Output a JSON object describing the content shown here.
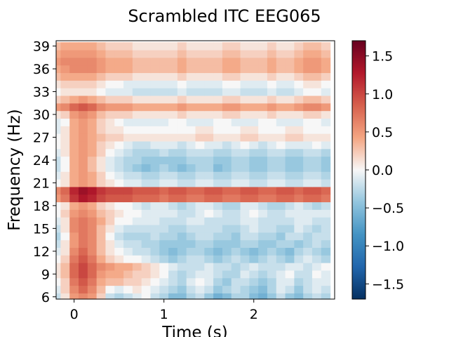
{
  "chart_data": {
    "type": "heatmap",
    "title": "Scrambled ITC EEG065",
    "xlabel": "Time (s)",
    "ylabel": "Frequency (Hz)",
    "xlim": [
      -0.2,
      2.9
    ],
    "ylim": [
      5.7,
      39.7
    ],
    "x_ticks": [
      0,
      1,
      2
    ],
    "x_tick_labels": [
      "0",
      "1",
      "2"
    ],
    "y_ticks": [
      6,
      9,
      12,
      15,
      18,
      21,
      24,
      27,
      30,
      33,
      36,
      39
    ],
    "y_tick_labels": [
      "6",
      "9",
      "12",
      "15",
      "18",
      "21",
      "24",
      "27",
      "30",
      "33",
      "36",
      "39"
    ],
    "colorbar": {
      "vmin": -1.7,
      "vmax": 1.7,
      "ticks": [
        -1.5,
        -1.0,
        -0.5,
        0.0,
        0.5,
        1.0,
        1.5
      ],
      "tick_labels": [
        "−1.5",
        "−1.0",
        "−0.5",
        "0.0",
        "0.5",
        "1.0",
        "1.5"
      ],
      "colormap": "RdBu_r"
    },
    "frequencies": [
      6,
      7,
      8,
      9,
      10,
      11,
      12,
      13,
      14,
      15,
      16,
      17,
      18,
      19,
      20,
      21,
      22,
      23,
      24,
      25,
      26,
      27,
      28,
      29,
      30,
      31,
      32,
      33,
      34,
      35,
      36,
      37,
      38,
      39
    ],
    "times": [
      -0.2,
      -0.1,
      0.0,
      0.1,
      0.2,
      0.3,
      0.4,
      0.5,
      0.6,
      0.7,
      0.8,
      0.9,
      1.0,
      1.1,
      1.2,
      1.3,
      1.4,
      1.5,
      1.6,
      1.7,
      1.8,
      1.9,
      2.0,
      2.1,
      2.2,
      2.3,
      2.4,
      2.5,
      2.6,
      2.7,
      2.8
    ],
    "values": [
      [
        -0.2,
        0.1,
        0.5,
        0.6,
        0.5,
        0.2,
        -0.2,
        -0.3,
        -0.2,
        -0.1,
        0.0,
        -0.2,
        -0.3,
        -0.5,
        -0.5,
        -0.3,
        -0.2,
        -0.4,
        -0.6,
        -0.5,
        -0.3,
        -0.3,
        -0.5,
        -0.6,
        -0.4,
        -0.2,
        -0.4,
        -0.5,
        -0.3,
        -0.2,
        -0.3
      ],
      [
        -0.1,
        0.2,
        0.6,
        0.8,
        0.6,
        0.3,
        0.0,
        -0.1,
        0.0,
        0.1,
        0.0,
        -0.1,
        -0.2,
        -0.3,
        -0.4,
        -0.2,
        -0.1,
        -0.2,
        -0.4,
        -0.3,
        -0.2,
        -0.3,
        -0.4,
        -0.5,
        -0.3,
        -0.1,
        -0.2,
        -0.4,
        -0.2,
        -0.1,
        -0.2
      ],
      [
        0.0,
        0.2,
        0.7,
        0.9,
        0.7,
        0.4,
        0.3,
        0.3,
        0.2,
        0.2,
        0.1,
        0.0,
        -0.1,
        -0.2,
        -0.3,
        -0.1,
        0.0,
        -0.1,
        -0.3,
        -0.4,
        -0.2,
        -0.2,
        -0.3,
        -0.4,
        -0.3,
        -0.1,
        -0.1,
        -0.3,
        -0.2,
        -0.1,
        -0.1
      ],
      [
        0.1,
        0.3,
        0.8,
        1.0,
        0.8,
        0.5,
        0.4,
        0.4,
        0.3,
        0.2,
        0.2,
        0.1,
        0.0,
        -0.2,
        -0.3,
        -0.2,
        -0.1,
        -0.1,
        -0.2,
        -0.3,
        -0.3,
        -0.1,
        -0.2,
        -0.3,
        -0.2,
        -0.1,
        0.0,
        -0.2,
        -0.2,
        0.0,
        -0.1
      ],
      [
        0.1,
        0.3,
        0.8,
        1.0,
        0.8,
        0.6,
        0.5,
        0.4,
        0.4,
        0.3,
        0.2,
        0.1,
        0.0,
        -0.1,
        -0.2,
        -0.2,
        -0.2,
        -0.1,
        -0.2,
        -0.2,
        -0.3,
        -0.2,
        -0.1,
        -0.2,
        -0.2,
        -0.2,
        -0.1,
        -0.1,
        -0.2,
        -0.1,
        0.0
      ],
      [
        0.0,
        0.2,
        0.7,
        0.9,
        0.7,
        0.4,
        0.2,
        0.1,
        0.0,
        0.0,
        -0.1,
        -0.2,
        -0.3,
        -0.4,
        -0.3,
        -0.2,
        -0.2,
        -0.3,
        -0.4,
        -0.3,
        -0.2,
        -0.3,
        -0.4,
        -0.3,
        -0.2,
        -0.3,
        -0.4,
        -0.2,
        -0.1,
        -0.2,
        -0.3
      ],
      [
        -0.1,
        0.1,
        0.6,
        0.8,
        0.6,
        0.3,
        0.1,
        0.0,
        -0.1,
        -0.2,
        -0.2,
        -0.3,
        -0.4,
        -0.5,
        -0.4,
        -0.3,
        -0.3,
        -0.4,
        -0.5,
        -0.4,
        -0.3,
        -0.4,
        -0.5,
        -0.4,
        -0.3,
        -0.4,
        -0.5,
        -0.3,
        -0.2,
        -0.3,
        -0.4
      ],
      [
        -0.2,
        0.1,
        0.5,
        0.7,
        0.6,
        0.3,
        0.1,
        -0.1,
        -0.2,
        -0.2,
        -0.3,
        -0.3,
        -0.4,
        -0.4,
        -0.4,
        -0.4,
        -0.3,
        -0.3,
        -0.4,
        -0.4,
        -0.4,
        -0.3,
        -0.3,
        -0.4,
        -0.4,
        -0.3,
        -0.3,
        -0.4,
        -0.3,
        -0.2,
        -0.3
      ],
      [
        -0.3,
        0.0,
        0.5,
        0.7,
        0.6,
        0.3,
        0.0,
        -0.2,
        -0.3,
        -0.3,
        -0.3,
        -0.2,
        -0.3,
        -0.3,
        -0.4,
        -0.3,
        -0.2,
        -0.2,
        -0.3,
        -0.3,
        -0.4,
        -0.2,
        -0.2,
        -0.3,
        -0.3,
        -0.4,
        -0.2,
        -0.2,
        -0.3,
        -0.2,
        -0.2
      ],
      [
        -0.2,
        0.1,
        0.6,
        0.7,
        0.6,
        0.3,
        0.1,
        -0.1,
        -0.2,
        -0.2,
        -0.2,
        -0.2,
        -0.2,
        -0.3,
        -0.3,
        -0.2,
        -0.2,
        -0.2,
        -0.2,
        -0.3,
        -0.3,
        -0.2,
        -0.1,
        -0.2,
        -0.2,
        -0.3,
        -0.3,
        -0.1,
        -0.2,
        -0.3,
        -0.2
      ],
      [
        -0.1,
        0.1,
        0.6,
        0.7,
        0.6,
        0.4,
        0.2,
        0.0,
        0.0,
        -0.1,
        -0.1,
        -0.1,
        -0.2,
        -0.2,
        -0.2,
        -0.1,
        -0.1,
        -0.2,
        -0.2,
        -0.2,
        -0.2,
        -0.1,
        -0.1,
        -0.2,
        -0.2,
        -0.2,
        -0.2,
        -0.1,
        -0.1,
        -0.2,
        -0.2
      ],
      [
        0.0,
        0.2,
        0.5,
        0.6,
        0.5,
        0.3,
        0.2,
        0.1,
        0.0,
        0.0,
        -0.1,
        -0.1,
        -0.1,
        -0.1,
        -0.2,
        -0.2,
        -0.1,
        0.0,
        -0.1,
        -0.2,
        -0.2,
        -0.1,
        0.0,
        -0.1,
        -0.2,
        -0.2,
        -0.1,
        -0.1,
        -0.1,
        -0.1,
        -0.1
      ],
      [
        0.0,
        0.1,
        0.4,
        0.5,
        0.4,
        0.2,
        0.1,
        0.0,
        0.0,
        -0.1,
        -0.2,
        -0.1,
        -0.1,
        -0.2,
        -0.3,
        -0.2,
        -0.1,
        -0.1,
        -0.2,
        -0.3,
        -0.3,
        -0.1,
        -0.1,
        -0.2,
        -0.3,
        -0.3,
        -0.2,
        -0.1,
        -0.2,
        -0.3,
        -0.2
      ],
      [
        0.5,
        0.7,
        1.1,
        1.3,
        1.2,
        1.0,
        0.9,
        0.9,
        0.9,
        0.8,
        0.8,
        0.8,
        0.7,
        0.8,
        0.8,
        0.7,
        0.7,
        0.8,
        0.8,
        0.7,
        0.7,
        0.8,
        0.8,
        0.7,
        0.7,
        0.8,
        0.8,
        0.7,
        0.8,
        0.8,
        0.7
      ],
      [
        0.6,
        0.8,
        1.2,
        1.4,
        1.3,
        1.1,
        1.0,
        1.0,
        1.0,
        0.9,
        0.9,
        0.9,
        0.8,
        0.9,
        0.9,
        0.8,
        0.8,
        0.9,
        0.9,
        0.8,
        0.8,
        0.9,
        0.9,
        0.8,
        0.8,
        0.9,
        0.9,
        0.8,
        0.9,
        0.9,
        0.8
      ],
      [
        0.0,
        0.1,
        0.4,
        0.5,
        0.4,
        0.2,
        0.1,
        0.0,
        -0.1,
        -0.1,
        -0.2,
        -0.2,
        -0.1,
        -0.1,
        -0.2,
        -0.2,
        -0.1,
        -0.1,
        -0.2,
        -0.2,
        -0.1,
        -0.1,
        -0.2,
        -0.2,
        -0.1,
        -0.1,
        -0.2,
        -0.2,
        -0.1,
        -0.1,
        -0.2
      ],
      [
        -0.1,
        0.1,
        0.4,
        0.5,
        0.4,
        0.2,
        0.0,
        -0.1,
        -0.2,
        -0.2,
        -0.3,
        -0.3,
        -0.2,
        -0.2,
        -0.3,
        -0.3,
        -0.2,
        -0.2,
        -0.3,
        -0.3,
        -0.2,
        -0.2,
        -0.3,
        -0.3,
        -0.2,
        -0.2,
        -0.3,
        -0.3,
        -0.2,
        -0.2,
        -0.3
      ],
      [
        -0.2,
        0.0,
        0.4,
        0.5,
        0.3,
        0.1,
        -0.1,
        -0.2,
        -0.3,
        -0.4,
        -0.5,
        -0.4,
        -0.3,
        -0.4,
        -0.5,
        -0.4,
        -0.3,
        -0.3,
        -0.5,
        -0.4,
        -0.3,
        -0.3,
        -0.4,
        -0.4,
        -0.3,
        -0.3,
        -0.4,
        -0.4,
        -0.3,
        -0.3,
        -0.4
      ],
      [
        -0.2,
        0.0,
        0.4,
        0.5,
        0.3,
        0.1,
        -0.1,
        -0.2,
        -0.3,
        -0.3,
        -0.4,
        -0.4,
        -0.4,
        -0.4,
        -0.4,
        -0.3,
        -0.3,
        -0.3,
        -0.4,
        -0.4,
        -0.3,
        -0.3,
        -0.4,
        -0.4,
        -0.3,
        -0.3,
        -0.4,
        -0.4,
        -0.3,
        -0.3,
        -0.4
      ],
      [
        -0.1,
        0.1,
        0.4,
        0.5,
        0.4,
        0.2,
        0.0,
        -0.1,
        -0.2,
        -0.3,
        -0.3,
        -0.3,
        -0.2,
        -0.3,
        -0.3,
        -0.2,
        -0.2,
        -0.2,
        -0.3,
        -0.3,
        -0.2,
        -0.2,
        -0.3,
        -0.3,
        -0.2,
        -0.2,
        -0.3,
        -0.3,
        -0.2,
        -0.2,
        -0.3
      ],
      [
        0.0,
        0.1,
        0.4,
        0.5,
        0.4,
        0.2,
        0.1,
        0.0,
        -0.1,
        -0.2,
        -0.2,
        -0.1,
        -0.1,
        -0.1,
        -0.2,
        -0.1,
        0.0,
        -0.1,
        -0.1,
        -0.2,
        -0.1,
        0.0,
        -0.1,
        -0.2,
        -0.1,
        0.0,
        -0.1,
        -0.1,
        -0.1,
        0.0,
        -0.1
      ],
      [
        0.0,
        0.1,
        0.4,
        0.5,
        0.4,
        0.3,
        0.2,
        0.2,
        0.1,
        0.1,
        0.1,
        0.1,
        0.1,
        0.1,
        0.1,
        0.1,
        0.2,
        0.2,
        0.1,
        0.1,
        0.1,
        0.2,
        0.2,
        0.1,
        0.1,
        0.1,
        0.2,
        0.2,
        0.1,
        0.1,
        0.1
      ],
      [
        -0.1,
        0.1,
        0.4,
        0.5,
        0.4,
        0.2,
        0.1,
        0.1,
        0.0,
        0.0,
        0.0,
        0.0,
        0.0,
        0.0,
        0.0,
        0.0,
        0.1,
        0.1,
        0.0,
        0.0,
        0.0,
        0.1,
        0.1,
        0.0,
        0.0,
        0.0,
        0.1,
        0.1,
        0.0,
        0.0,
        0.0
      ],
      [
        -0.1,
        0.0,
        0.4,
        0.5,
        0.4,
        0.2,
        0.1,
        0.0,
        -0.1,
        -0.1,
        -0.1,
        -0.1,
        -0.1,
        0.0,
        0.0,
        -0.1,
        -0.1,
        -0.1,
        0.0,
        0.0,
        -0.1,
        -0.1,
        -0.1,
        0.0,
        0.0,
        -0.1,
        -0.1,
        -0.1,
        0.0,
        0.0,
        -0.1
      ],
      [
        0.1,
        0.2,
        0.5,
        0.6,
        0.5,
        0.3,
        0.2,
        0.2,
        0.2,
        0.1,
        0.1,
        0.1,
        0.1,
        0.1,
        0.2,
        0.1,
        0.1,
        0.1,
        0.1,
        0.2,
        0.2,
        0.1,
        0.1,
        0.1,
        0.2,
        0.1,
        0.1,
        0.1,
        0.2,
        0.2,
        0.1
      ],
      [
        0.5,
        0.6,
        0.8,
        0.9,
        0.8,
        0.6,
        0.5,
        0.5,
        0.5,
        0.4,
        0.4,
        0.4,
        0.4,
        0.4,
        0.5,
        0.4,
        0.4,
        0.4,
        0.4,
        0.5,
        0.5,
        0.4,
        0.4,
        0.4,
        0.5,
        0.4,
        0.4,
        0.5,
        0.6,
        0.6,
        0.5
      ],
      [
        0.2,
        0.3,
        0.4,
        0.5,
        0.4,
        0.3,
        0.2,
        0.2,
        0.2,
        0.1,
        0.1,
        0.1,
        0.1,
        0.1,
        0.2,
        0.1,
        0.1,
        0.1,
        0.1,
        0.2,
        0.2,
        0.1,
        0.1,
        0.1,
        0.2,
        0.1,
        0.1,
        0.2,
        0.3,
        0.3,
        0.2
      ],
      [
        0.0,
        0.1,
        0.1,
        0.1,
        0.1,
        0.0,
        -0.1,
        -0.1,
        -0.1,
        -0.2,
        -0.2,
        -0.2,
        -0.2,
        -0.2,
        -0.1,
        -0.2,
        -0.2,
        -0.2,
        -0.2,
        -0.1,
        -0.1,
        -0.2,
        -0.2,
        -0.2,
        -0.1,
        -0.2,
        -0.2,
        -0.1,
        0.0,
        0.0,
        -0.1
      ],
      [
        0.1,
        0.2,
        0.2,
        0.2,
        0.2,
        0.1,
        0.0,
        0.0,
        -0.1,
        -0.1,
        -0.1,
        -0.1,
        -0.1,
        -0.1,
        0.0,
        -0.1,
        -0.1,
        -0.1,
        -0.1,
        0.0,
        0.0,
        -0.1,
        -0.1,
        -0.1,
        0.0,
        -0.1,
        -0.1,
        0.0,
        0.1,
        0.1,
        0.0
      ],
      [
        0.3,
        0.4,
        0.4,
        0.4,
        0.4,
        0.3,
        0.2,
        0.2,
        0.2,
        0.1,
        0.1,
        0.1,
        0.1,
        0.1,
        0.2,
        0.1,
        0.1,
        0.1,
        0.1,
        0.2,
        0.2,
        0.1,
        0.1,
        0.1,
        0.2,
        0.1,
        0.1,
        0.2,
        0.3,
        0.3,
        0.2
      ],
      [
        0.4,
        0.5,
        0.6,
        0.6,
        0.6,
        0.5,
        0.4,
        0.4,
        0.4,
        0.3,
        0.3,
        0.3,
        0.3,
        0.3,
        0.4,
        0.3,
        0.3,
        0.3,
        0.3,
        0.4,
        0.4,
        0.3,
        0.3,
        0.3,
        0.4,
        0.3,
        0.3,
        0.4,
        0.5,
        0.5,
        0.4
      ],
      [
        0.5,
        0.6,
        0.6,
        0.6,
        0.6,
        0.5,
        0.4,
        0.4,
        0.4,
        0.3,
        0.3,
        0.3,
        0.3,
        0.3,
        0.4,
        0.3,
        0.3,
        0.3,
        0.3,
        0.4,
        0.4,
        0.3,
        0.3,
        0.3,
        0.4,
        0.3,
        0.3,
        0.4,
        0.5,
        0.5,
        0.4
      ],
      [
        0.4,
        0.5,
        0.5,
        0.5,
        0.5,
        0.4,
        0.3,
        0.3,
        0.3,
        0.2,
        0.2,
        0.2,
        0.2,
        0.2,
        0.3,
        0.2,
        0.2,
        0.2,
        0.2,
        0.3,
        0.3,
        0.2,
        0.2,
        0.2,
        0.3,
        0.2,
        0.2,
        0.3,
        0.4,
        0.4,
        0.3
      ],
      [
        0.3,
        0.4,
        0.4,
        0.4,
        0.4,
        0.3,
        0.2,
        0.2,
        0.2,
        0.1,
        0.1,
        0.1,
        0.1,
        0.1,
        0.2,
        0.1,
        0.1,
        0.1,
        0.1,
        0.2,
        0.2,
        0.1,
        0.1,
        0.1,
        0.2,
        0.1,
        0.1,
        0.2,
        0.3,
        0.3,
        0.2
      ]
    ]
  }
}
